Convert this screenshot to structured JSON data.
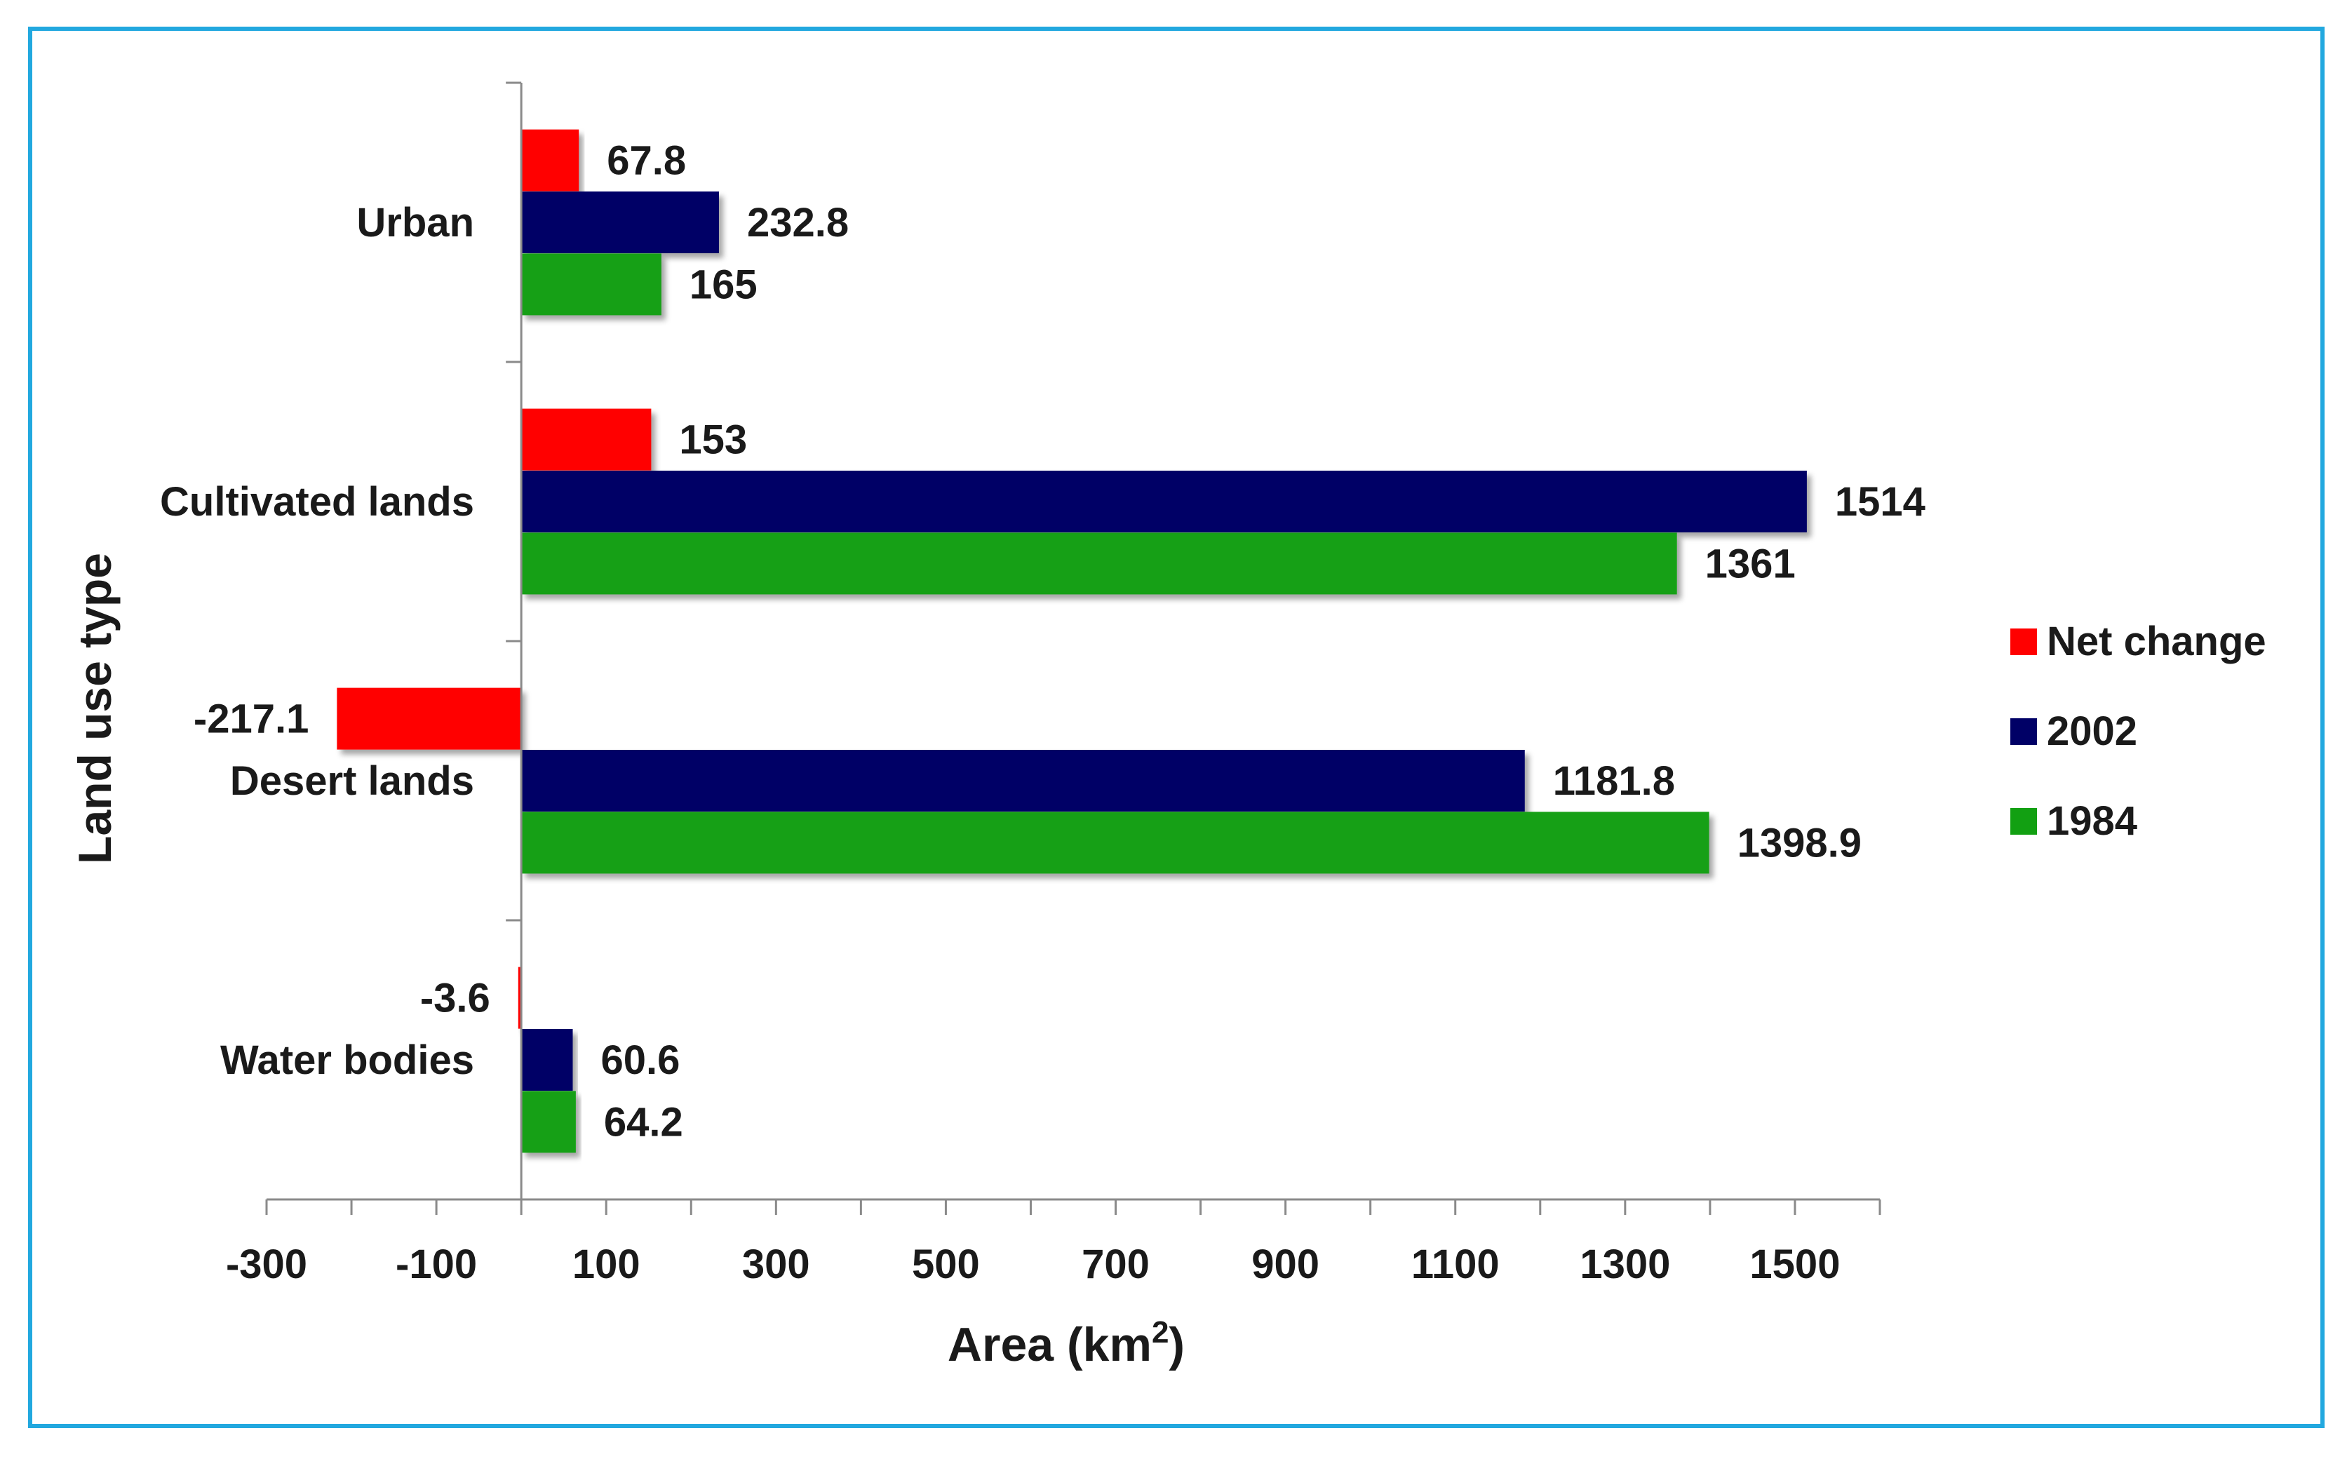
{
  "chart_data": {
    "type": "bar",
    "orientation": "horizontal",
    "title": "",
    "xlabel": "Area (km",
    "xlabel_superscript": "2",
    "xlabel_suffix": ")",
    "ylabel": "Land use type",
    "xlim": [
      -300,
      1600
    ],
    "xticks": [
      -300,
      -100,
      100,
      300,
      500,
      700,
      900,
      1100,
      1300,
      1500
    ],
    "grid": false,
    "legend_position": "right",
    "categories": [
      "Urban",
      "Cultivated lands",
      "Desert lands",
      "Water bodies"
    ],
    "series": [
      {
        "name": "Net change",
        "color": "#ff0000",
        "values": [
          67.8,
          153,
          -217.1,
          -3.6
        ],
        "labels": [
          "67.8",
          "153",
          "-217.1",
          "-3.6"
        ]
      },
      {
        "name": "2002",
        "color": "#000066",
        "values": [
          232.8,
          1514,
          1181.8,
          60.6
        ],
        "labels": [
          "232.8",
          "1514",
          "1181.8",
          "60.6"
        ]
      },
      {
        "name": "1984",
        "color": "#12a012",
        "values": [
          165,
          1361,
          1398.9,
          64.2
        ],
        "labels": [
          "165",
          "1361",
          "1398.9",
          "64.2"
        ]
      }
    ]
  }
}
